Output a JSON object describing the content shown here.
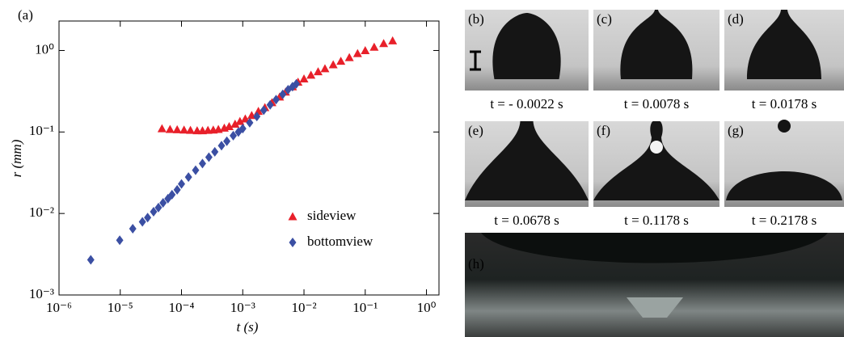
{
  "chart_data": {
    "type": "scatter",
    "panel_label": "(a)",
    "x_label": "t (s)",
    "y_label": "r (mm)",
    "x_scale": "log",
    "y_scale": "log",
    "xlim": [
      1e-06,
      1.6
    ],
    "ylim": [
      0.001,
      2.3
    ],
    "xticks": [
      {
        "value": 1e-06,
        "label": "10⁻⁶"
      },
      {
        "value": 1e-05,
        "label": "10⁻⁵"
      },
      {
        "value": 0.0001,
        "label": "10⁻⁴"
      },
      {
        "value": 0.001,
        "label": "10⁻³"
      },
      {
        "value": 0.01,
        "label": "10⁻²"
      },
      {
        "value": 0.1,
        "label": "10⁻¹"
      },
      {
        "value": 1,
        "label": "10⁰"
      }
    ],
    "yticks": [
      {
        "value": 0.001,
        "label": "10⁻³"
      },
      {
        "value": 0.01,
        "label": "10⁻²"
      },
      {
        "value": 0.1,
        "label": "10⁻¹"
      },
      {
        "value": 1,
        "label": "10⁰"
      }
    ],
    "legend": "lower right",
    "series": [
      {
        "name": "sideview",
        "color": "#e8202a",
        "marker": "triangle",
        "x": [
          4.8e-05,
          6.5e-05,
          8.5e-05,
          0.00011,
          0.00014,
          0.00018,
          0.00022,
          0.00027,
          0.00033,
          0.0004,
          0.0005,
          0.0006,
          0.00075,
          0.0009,
          0.0011,
          0.0014,
          0.0018,
          0.0023,
          0.003,
          0.004,
          0.005,
          0.0065,
          0.008,
          0.01,
          0.013,
          0.017,
          0.022,
          0.03,
          0.04,
          0.055,
          0.075,
          0.1,
          0.14,
          0.2,
          0.28
        ],
        "values": [
          0.11,
          0.108,
          0.107,
          0.106,
          0.105,
          0.104,
          0.104,
          0.105,
          0.106,
          0.108,
          0.112,
          0.117,
          0.125,
          0.135,
          0.145,
          0.16,
          0.18,
          0.2,
          0.23,
          0.27,
          0.31,
          0.36,
          0.41,
          0.45,
          0.5,
          0.55,
          0.6,
          0.67,
          0.74,
          0.82,
          0.92,
          1.0,
          1.1,
          1.22,
          1.32
        ]
      },
      {
        "name": "bottomview",
        "color": "#3b4fa3",
        "marker": "diamond",
        "x": [
          3.3e-06,
          9.8e-06,
          1.6e-05,
          2.3e-05,
          2.8e-05,
          3.5e-05,
          4.2e-05,
          5e-05,
          6e-05,
          7e-05,
          8.5e-05,
          0.0001,
          0.00013,
          0.00017,
          0.00022,
          0.00028,
          0.00035,
          0.00045,
          0.00055,
          0.0007,
          0.00085,
          0.001,
          0.0013,
          0.0017,
          0.0022,
          0.0028,
          0.0035,
          0.0045,
          0.0055,
          0.0065,
          0.0075
        ],
        "values": [
          0.0027,
          0.0047,
          0.0065,
          0.0079,
          0.0089,
          0.0105,
          0.0118,
          0.0135,
          0.0152,
          0.017,
          0.0195,
          0.023,
          0.028,
          0.034,
          0.041,
          0.049,
          0.057,
          0.068,
          0.077,
          0.09,
          0.1,
          0.11,
          0.13,
          0.155,
          0.185,
          0.215,
          0.25,
          0.29,
          0.33,
          0.36,
          0.39
        ]
      }
    ]
  },
  "panels": [
    {
      "label": "(b)",
      "caption": "t = - 0.0022 s"
    },
    {
      "label": "(c)",
      "caption": "t = 0.0078 s"
    },
    {
      "label": "(d)",
      "caption": "t = 0.0178 s"
    },
    {
      "label": "(e)",
      "caption": "t = 0.0678 s"
    },
    {
      "label": "(f)",
      "caption": "t = 0.1178 s"
    },
    {
      "label": "(g)",
      "caption": "t = 0.2178 s"
    },
    {
      "label": "(h)"
    }
  ]
}
